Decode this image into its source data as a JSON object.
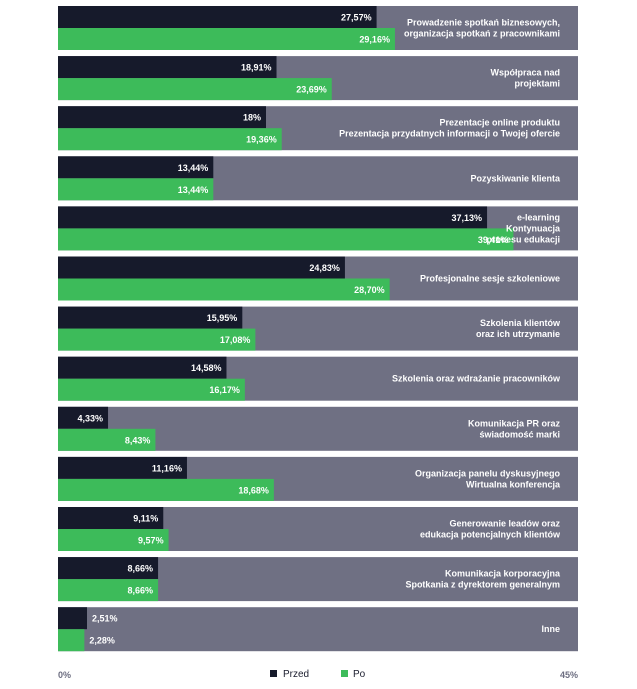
{
  "chart_data": {
    "type": "bar",
    "orientation": "horizontal",
    "xlim": [
      0,
      45
    ],
    "axis_labels": {
      "min": "0%",
      "max": "45%"
    },
    "colors": {
      "before": "#161a2b",
      "after": "#3dbb5a",
      "track": "#6f7083"
    },
    "legend_position": "bottom-center",
    "categories": [
      [
        "Prowadzenie spotkań biznesowych,",
        "organizacja spotkań z pracownikami"
      ],
      [
        "Współpraca nad",
        "projektami"
      ],
      [
        "Prezentacje online produktu",
        "Prezentacja przydatnych informacji o Twojej ofercie"
      ],
      [
        "Pozyskiwanie klienta"
      ],
      [
        "e-learning",
        "Kontynuacja",
        "procesu edukacji"
      ],
      [
        "Profesjonalne sesje szkoleniowe"
      ],
      [
        "Szkolenia klientów",
        "oraz ich utrzymanie"
      ],
      [
        "Szkolenia oraz wdrażanie pracowników"
      ],
      [
        "Komunikacja PR oraz",
        "świadomość marki"
      ],
      [
        "Organizacja panelu dyskusyjnego",
        "Wirtualna konferencja"
      ],
      [
        "Generowanie leadów oraz",
        "edukacja potencjalnych klientów"
      ],
      [
        "Komunikacja korporacyjna",
        "Spotkania z dyrektorem generalnym"
      ],
      [
        "Inne"
      ]
    ],
    "series": [
      {
        "name": "Przed",
        "values": [
          27.57,
          18.91,
          18,
          13.44,
          37.13,
          24.83,
          15.95,
          14.58,
          4.33,
          11.16,
          9.11,
          8.66,
          2.51
        ],
        "labels": [
          "27,57%",
          "18,91%",
          "18%",
          "13,44%",
          "37,13%",
          "24,83%",
          "15,95%",
          "14,58%",
          "4,33%",
          "11,16%",
          "9,11%",
          "8,66%",
          "2,51%"
        ]
      },
      {
        "name": "Po",
        "values": [
          29.16,
          23.69,
          19.36,
          13.44,
          39.41,
          28.7,
          17.08,
          16.17,
          8.43,
          18.68,
          9.57,
          8.66,
          2.28
        ],
        "labels": [
          "29,16%",
          "23,69%",
          "19,36%",
          "13,44%",
          "39,41%",
          "28,70%",
          "17,08%",
          "16,17%",
          "8,43%",
          "18,68%",
          "9,57%",
          "8,66%",
          "2,28%"
        ]
      }
    ]
  }
}
